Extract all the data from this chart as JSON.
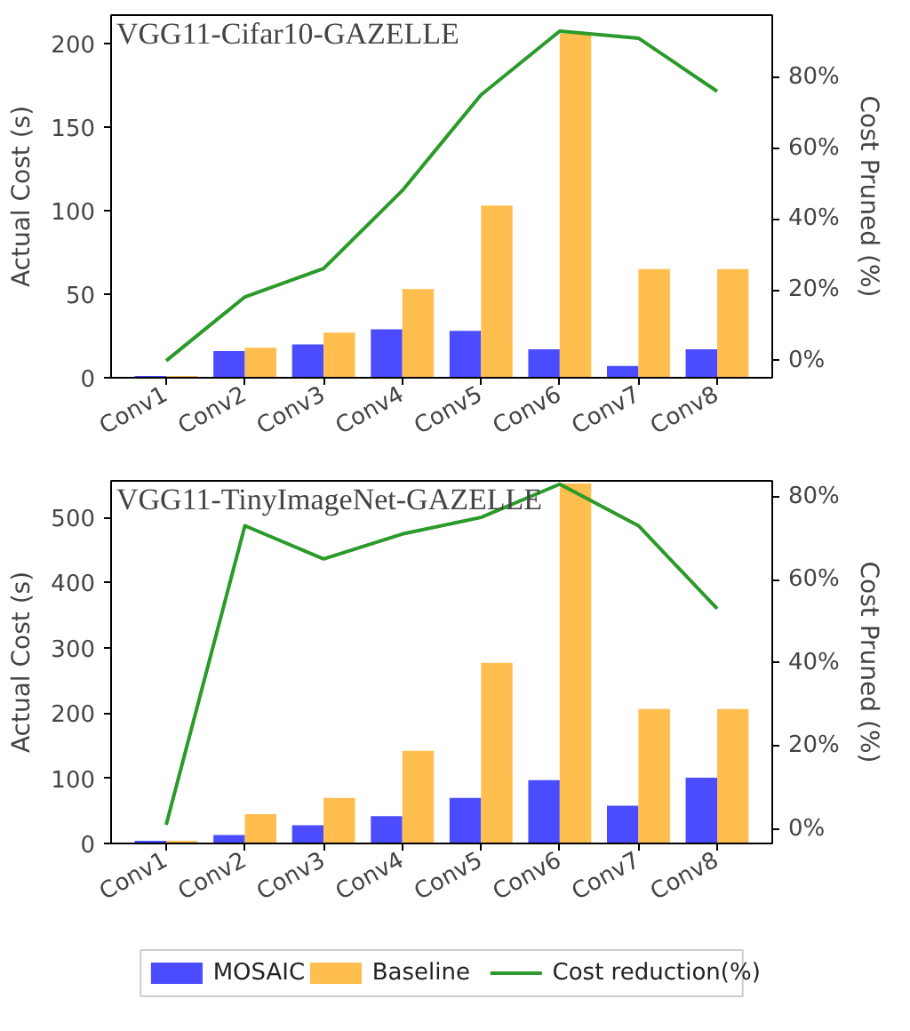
{
  "chart_data": [
    {
      "type": "bar",
      "title": "VGG11-Cifar10-GAZELLE",
      "ylabel": "Actual Cost (s)",
      "y2label": "Cost Pruned (%)",
      "categories": [
        "Conv1",
        "Conv2",
        "Conv3",
        "Conv4",
        "Conv5",
        "Conv6",
        "Conv7",
        "Conv8"
      ],
      "series": [
        {
          "color": "#4b4bff",
          "values": [
            1,
            16,
            20,
            29,
            28,
            17,
            7,
            17
          ]
        },
        {
          "color": "#ffbe4d",
          "values": [
            1,
            18,
            27,
            53,
            103,
            206,
            65,
            65
          ]
        },
        {
          "type": "line",
          "axis": "y2",
          "color": "#2a9a2a",
          "values": [
            0,
            18,
            26,
            48,
            75,
            93,
            91,
            76
          ]
        }
      ],
      "ylim": [
        0,
        217
      ],
      "yticks": [
        0,
        50,
        100,
        150,
        200
      ],
      "y2lim": [
        -4.8,
        97.5
      ],
      "y2ticks": [
        {
          "value": 0,
          "label": "0%"
        },
        {
          "value": 20,
          "label": "20%"
        },
        {
          "value": 40,
          "label": "40%"
        },
        {
          "value": 60,
          "label": "60%"
        },
        {
          "value": 80,
          "label": "80%"
        }
      ],
      "grid": false,
      "legend": false
    },
    {
      "type": "bar",
      "title": "VGG11-TinyImageNet-GAZELLE",
      "ylabel": "Actual Cost (s)",
      "y2label": "Cost Pruned (%)",
      "categories": [
        "Conv1",
        "Conv2",
        "Conv3",
        "Conv4",
        "Conv5",
        "Conv6",
        "Conv7",
        "Conv8"
      ],
      "series": [
        {
          "name": "MOSAIC",
          "color": "#4b4bff",
          "values": [
            4,
            13,
            28,
            42,
            70,
            97,
            58,
            101
          ]
        },
        {
          "name": "Baseline",
          "color": "#ffbe4d",
          "values": [
            4,
            45,
            70,
            142,
            277,
            552,
            206,
            206
          ]
        },
        {
          "name": "Cost reduction(%)",
          "type": "line",
          "axis": "y2",
          "color": "#2a9a2a",
          "values": [
            1,
            73,
            65,
            71,
            75,
            83,
            73,
            53
          ]
        }
      ],
      "ylim": [
        0,
        556
      ],
      "yticks": [
        0,
        100,
        200,
        300,
        400,
        500
      ],
      "y2lim": [
        -3.5,
        83.8
      ],
      "y2ticks": [
        {
          "value": 0,
          "label": "0%"
        },
        {
          "value": 20,
          "label": "20%"
        },
        {
          "value": 40,
          "label": "40%"
        },
        {
          "value": 60,
          "label": "60%"
        },
        {
          "value": 80,
          "label": "80%"
        }
      ],
      "grid": false,
      "legend": "bottom"
    }
  ]
}
